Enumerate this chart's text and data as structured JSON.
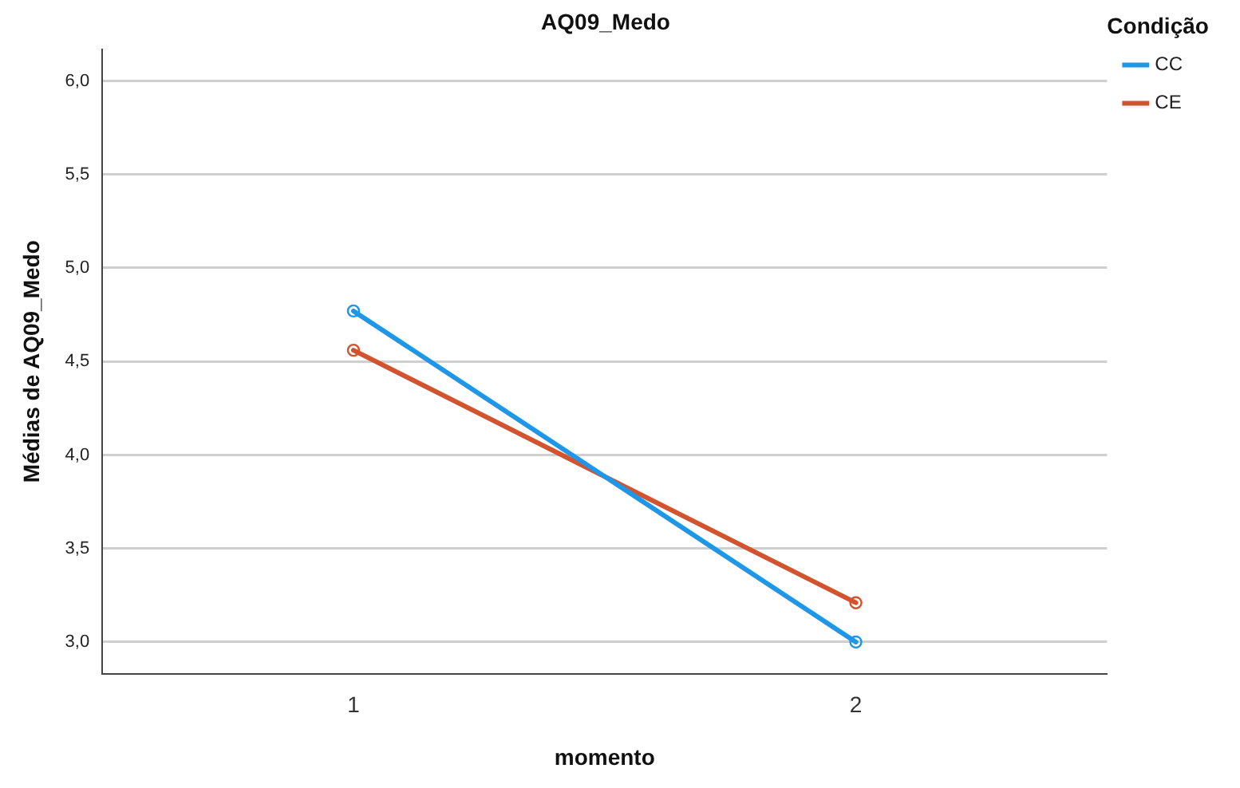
{
  "chart_data": {
    "type": "line",
    "title": "AQ09_Medo",
    "xlabel": "momento",
    "ylabel": "Médias de AQ09_Medo",
    "legend_title": "Condição",
    "categories": [
      "1",
      "2"
    ],
    "series": [
      {
        "name": "CC",
        "color": "#1f97e8",
        "values": [
          4.77,
          3.0
        ]
      },
      {
        "name": "CE",
        "color": "#d2532d",
        "values": [
          4.56,
          3.21
        ]
      }
    ],
    "ylim": [
      2.83,
      6.17
    ],
    "yticks": [
      {
        "value": 3,
        "label": "3,0"
      },
      {
        "value": 3.5,
        "label": "3,5"
      },
      {
        "value": 4,
        "label": "4,0"
      },
      {
        "value": 4.5,
        "label": "4,5"
      },
      {
        "value": 5,
        "label": "5,0"
      },
      {
        "value": 5.5,
        "label": "5,5"
      },
      {
        "value": 6,
        "label": "6,0"
      }
    ],
    "grid": "y",
    "legend": "top right",
    "marker": "circle",
    "line_style": "solid"
  }
}
